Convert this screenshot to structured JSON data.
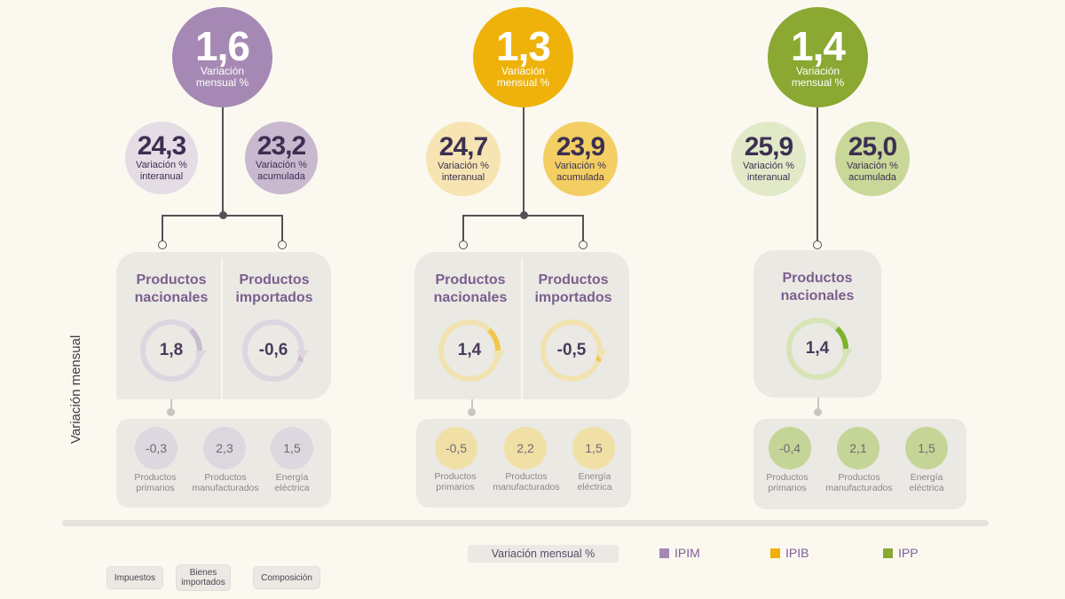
{
  "colors": {
    "ipim": "#a589b4",
    "ipim_light": "#d9d0dd",
    "ipib": "#eeb20a",
    "ipib_light": "#f6e4b0",
    "ipp": "#8aa832",
    "ipp_light": "#d3e0a8"
  },
  "axis_label": "Variación mensual",
  "groups": [
    {
      "id": "ipim",
      "main_value": "1,6",
      "main_label": "Variación mensual %",
      "interanual_value": "24,3",
      "interanual_label": "Variación % interanual",
      "acumulada_value": "23,2",
      "acumulada_label": "Variación % acumulada",
      "nacionales_title": "Productos nacionales",
      "nacionales_value": "1,8",
      "importados_title": "Productos importados",
      "importados_value": "-0,6",
      "primarios_value": "-0,3",
      "primarios_label": "Productos primarios",
      "manufacturados_value": "2,3",
      "manufacturados_label": "Productos manufacturados",
      "energia_value": "1,5",
      "energia_label": "Energía eléctrica"
    },
    {
      "id": "ipib",
      "main_value": "1,3",
      "main_label": "Variación mensual %",
      "interanual_value": "24,7",
      "interanual_label": "Variación % interanual",
      "acumulada_value": "23,9",
      "acumulada_label": "Variación % acumulada",
      "nacionales_title": "Productos nacionales",
      "nacionales_value": "1,4",
      "importados_title": "Productos importados",
      "importados_value": "-0,5",
      "primarios_value": "-0,5",
      "primarios_label": "Productos primarios",
      "manufacturados_value": "2,2",
      "manufacturados_label": "Productos manufacturados",
      "energia_value": "1,5",
      "energia_label": "Energía eléctrica"
    },
    {
      "id": "ipp",
      "main_value": "1,4",
      "main_label": "Variación mensual %",
      "interanual_value": "25,9",
      "interanual_label": "Variación % interanual",
      "acumulada_value": "25,0",
      "acumulada_label": "Variación % acumulada",
      "nacionales_title": "Productos nacionales",
      "nacionales_value": "1,4",
      "primarios_value": "-0,4",
      "primarios_label": "Productos primarios",
      "manufacturados_value": "2,1",
      "manufacturados_label": "Productos manufacturados",
      "energia_value": "1,5",
      "energia_label": "Energía eléctrica"
    }
  ],
  "legend": {
    "variacion_label": "Variación mensual %",
    "ipim": "IPIM",
    "ipib": "IPIB",
    "ipp": "IPP"
  },
  "buttons": {
    "impuestos": "Impuestos",
    "bienes_importados": "Bienes importados",
    "composicion": "Composición"
  }
}
